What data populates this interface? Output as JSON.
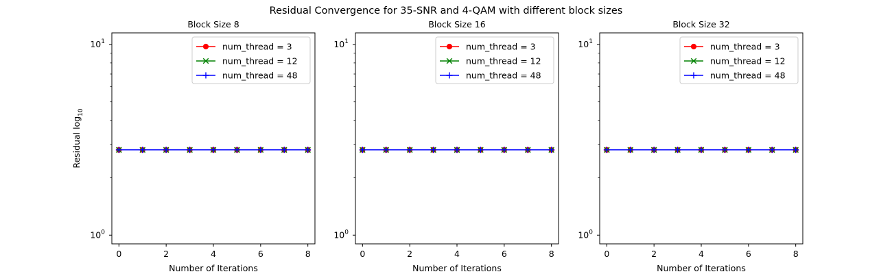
{
  "figure": {
    "suptitle": "Residual Convergence for 35-SNR and 4-QAM with different block sizes"
  },
  "chart_data": [
    {
      "type": "line",
      "title": "Block Size 8",
      "xlabel": "Number of Iterations",
      "ylabel": "Residual log",
      "ylabel_subscript": "10",
      "yscale": "log",
      "xlim": [
        -0.3,
        8.3
      ],
      "ylim": [
        0.9,
        11.5
      ],
      "xticks": [
        0,
        2,
        4,
        6,
        8
      ],
      "yticks": [
        {
          "value": 1,
          "base": "10",
          "exp": "0"
        },
        {
          "value": 10,
          "base": "10",
          "exp": "1"
        }
      ],
      "x": [
        0,
        1,
        2,
        3,
        4,
        5,
        6,
        7,
        8
      ],
      "series": [
        {
          "name": "num_thread = 3",
          "color": "#ff0000",
          "marker": "circle",
          "values": [
            2.8,
            2.8,
            2.8,
            2.8,
            2.8,
            2.8,
            2.8,
            2.8,
            2.8
          ]
        },
        {
          "name": "num_thread = 12",
          "color": "#008000",
          "marker": "x",
          "values": [
            2.8,
            2.8,
            2.8,
            2.8,
            2.8,
            2.8,
            2.8,
            2.8,
            2.8
          ]
        },
        {
          "name": "num_thread = 48",
          "color": "#0000ff",
          "marker": "plus",
          "values": [
            2.8,
            2.8,
            2.8,
            2.8,
            2.8,
            2.8,
            2.8,
            2.8,
            2.8
          ]
        }
      ],
      "legend": "top-right",
      "grid": false
    },
    {
      "type": "line",
      "title": "Block Size 16",
      "xlabel": "Number of Iterations",
      "ylabel": "",
      "yscale": "log",
      "xlim": [
        -0.3,
        8.3
      ],
      "ylim": [
        0.9,
        11.5
      ],
      "xticks": [
        0,
        2,
        4,
        6,
        8
      ],
      "yticks": [
        {
          "value": 1,
          "base": "10",
          "exp": "0"
        },
        {
          "value": 10,
          "base": "10",
          "exp": "1"
        }
      ],
      "x": [
        0,
        1,
        2,
        3,
        4,
        5,
        6,
        7,
        8
      ],
      "series": [
        {
          "name": "num_thread = 3",
          "color": "#ff0000",
          "marker": "circle",
          "values": [
            2.8,
            2.8,
            2.8,
            2.8,
            2.8,
            2.8,
            2.8,
            2.8,
            2.8
          ]
        },
        {
          "name": "num_thread = 12",
          "color": "#008000",
          "marker": "x",
          "values": [
            2.8,
            2.8,
            2.8,
            2.8,
            2.8,
            2.8,
            2.8,
            2.8,
            2.8
          ]
        },
        {
          "name": "num_thread = 48",
          "color": "#0000ff",
          "marker": "plus",
          "values": [
            2.8,
            2.8,
            2.8,
            2.8,
            2.8,
            2.8,
            2.8,
            2.8,
            2.8
          ]
        }
      ],
      "legend": "top-right",
      "grid": false
    },
    {
      "type": "line",
      "title": "Block Size 32",
      "xlabel": "Number of Iterations",
      "ylabel": "",
      "yscale": "log",
      "xlim": [
        -0.3,
        8.3
      ],
      "ylim": [
        0.9,
        11.5
      ],
      "xticks": [
        0,
        2,
        4,
        6,
        8
      ],
      "yticks": [
        {
          "value": 1,
          "base": "10",
          "exp": "0"
        },
        {
          "value": 10,
          "base": "10",
          "exp": "1"
        }
      ],
      "x": [
        0,
        1,
        2,
        3,
        4,
        5,
        6,
        7,
        8
      ],
      "series": [
        {
          "name": "num_thread = 3",
          "color": "#ff0000",
          "marker": "circle",
          "values": [
            2.8,
            2.8,
            2.8,
            2.8,
            2.8,
            2.8,
            2.8,
            2.8,
            2.8
          ]
        },
        {
          "name": "num_thread = 12",
          "color": "#008000",
          "marker": "x",
          "values": [
            2.8,
            2.8,
            2.8,
            2.8,
            2.8,
            2.8,
            2.8,
            2.8,
            2.8
          ]
        },
        {
          "name": "num_thread = 48",
          "color": "#0000ff",
          "marker": "plus",
          "values": [
            2.8,
            2.8,
            2.8,
            2.8,
            2.8,
            2.8,
            2.8,
            2.8,
            2.8
          ]
        }
      ],
      "legend": "top-right",
      "grid": false
    }
  ]
}
